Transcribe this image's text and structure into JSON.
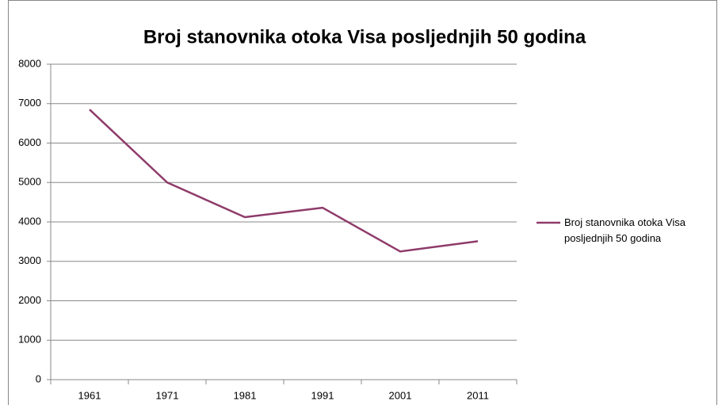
{
  "chart_data": {
    "type": "line",
    "title": "Broj stanovnika otoka Visa posljednjih 50 godina",
    "categories": [
      "1961",
      "1971",
      "1981",
      "1991",
      "2001",
      "2011"
    ],
    "series": [
      {
        "name": "Broj stanovnika otoka Visa posljednjih 50 godina",
        "color": "#8e3b6a",
        "values": [
          6850,
          5000,
          4120,
          4360,
          3250,
          3510
        ]
      }
    ],
    "ylim": [
      0,
      8000
    ],
    "yticks": [
      0,
      1000,
      2000,
      3000,
      4000,
      5000,
      6000,
      7000,
      8000
    ],
    "grid": true,
    "legend": "right"
  }
}
